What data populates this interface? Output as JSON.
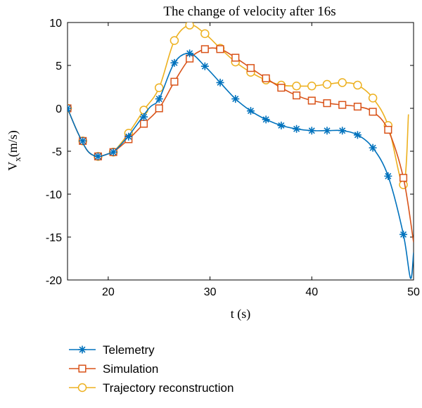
{
  "chart_data": {
    "type": "line",
    "title": "The change of velocity after 16s",
    "xlabel": "t (s)",
    "ylabel_main": "V",
    "ylabel_sub": "x",
    "ylabel_unit": "(m/s)",
    "xlim": [
      16,
      50
    ],
    "ylim": [
      -20,
      10
    ],
    "xticks": [
      20,
      30,
      40,
      50
    ],
    "yticks": [
      10,
      5,
      0,
      -5,
      -10,
      -15,
      -20
    ],
    "grid": false,
    "legend_position": "bottom-left, outside plot area",
    "series": [
      {
        "name": "Telemetry",
        "color": "#0072BD",
        "marker": "star",
        "x": [
          16,
          17,
          18,
          19,
          20,
          20.5,
          22,
          24,
          25,
          26.5,
          28,
          29.5,
          31,
          32.5,
          34,
          35.5,
          37,
          38.5,
          40,
          41.5,
          43,
          44.5,
          46,
          47.5,
          49,
          49.7,
          50
        ],
        "y": [
          0,
          -2.8,
          -5.0,
          -5.6,
          -5.3,
          -5.1,
          -3.2,
          0.0,
          1.1,
          5.3,
          6.4,
          4.9,
          3.0,
          1.1,
          -0.3,
          -1.3,
          -2.0,
          -2.4,
          -2.6,
          -2.6,
          -2.6,
          -3.1,
          -4.6,
          -7.9,
          -14.7,
          -19.8,
          -16.8
        ],
        "markers_x": [
          16,
          17.5,
          19,
          20.5,
          22,
          23.5,
          25,
          26.5,
          28,
          29.5,
          31,
          32.5,
          34,
          35.5,
          37,
          38.5,
          40,
          41.5,
          43,
          44.5,
          46,
          47.5,
          49
        ],
        "markers_y": [
          0,
          -3.8,
          -5.6,
          -5.1,
          -3.3,
          -1.0,
          1.1,
          5.3,
          6.4,
          4.9,
          3.0,
          1.1,
          -0.3,
          -1.3,
          -2.0,
          -2.4,
          -2.6,
          -2.6,
          -2.6,
          -3.1,
          -4.6,
          -7.9,
          -14.7
        ]
      },
      {
        "name": "Simulation",
        "color": "#D95319",
        "marker": "square",
        "x": [
          16,
          17,
          18,
          19,
          20,
          20.5,
          22,
          23.5,
          25,
          26.5,
          28,
          29.5,
          31,
          32.5,
          34,
          35.5,
          37,
          38.5,
          40,
          41.5,
          43,
          44.5,
          46,
          47.5,
          49,
          50
        ],
        "y": [
          0,
          -2.8,
          -5.0,
          -5.6,
          -5.3,
          -5.1,
          -3.6,
          -1.8,
          0.0,
          3.1,
          5.8,
          6.9,
          6.9,
          5.9,
          4.7,
          3.5,
          2.4,
          1.5,
          0.9,
          0.6,
          0.4,
          0.2,
          -0.4,
          -2.5,
          -8.1,
          -15.6
        ],
        "markers_x": [
          16,
          17.5,
          19,
          20.5,
          22,
          23.5,
          25,
          26.5,
          28,
          29.5,
          31,
          32.5,
          34,
          35.5,
          37,
          38.5,
          40,
          41.5,
          43,
          44.5,
          46,
          47.5,
          49
        ],
        "markers_y": [
          0,
          -3.8,
          -5.6,
          -5.1,
          -3.6,
          -1.8,
          0.0,
          3.1,
          5.8,
          6.9,
          6.9,
          5.9,
          4.7,
          3.5,
          2.4,
          1.5,
          0.9,
          0.6,
          0.4,
          0.2,
          -0.4,
          -2.5,
          -8.1
        ]
      },
      {
        "name": "Trajectory reconstruction",
        "color": "#EDB120",
        "marker": "circle",
        "x": [
          16,
          17,
          18,
          19,
          20,
          20.5,
          22,
          23.5,
          25,
          26.5,
          28,
          29.5,
          31,
          32.5,
          34,
          35.5,
          37,
          38.5,
          40,
          41.5,
          43,
          44.5,
          46,
          47.5,
          49,
          49.5
        ],
        "y": [
          0,
          -2.8,
          -5.0,
          -5.6,
          -5.3,
          -5.1,
          -2.9,
          -0.2,
          2.4,
          7.9,
          9.7,
          8.7,
          7.0,
          5.4,
          4.2,
          3.3,
          2.7,
          2.6,
          2.6,
          2.8,
          3.0,
          2.7,
          1.2,
          -2.0,
          -8.9,
          -0.7
        ],
        "markers_x": [
          16,
          17.5,
          19,
          20.5,
          22,
          23.5,
          25,
          26.5,
          28,
          29.5,
          31,
          32.5,
          34,
          35.5,
          37,
          38.5,
          40,
          41.5,
          43,
          44.5,
          46,
          47.5,
          49
        ],
        "markers_y": [
          0,
          -3.8,
          -5.6,
          -5.1,
          -2.9,
          -0.2,
          2.4,
          7.9,
          9.7,
          8.7,
          7.0,
          5.4,
          4.2,
          3.3,
          2.7,
          2.6,
          2.6,
          2.8,
          3.0,
          2.7,
          1.2,
          -2.0,
          -8.9
        ]
      }
    ]
  }
}
